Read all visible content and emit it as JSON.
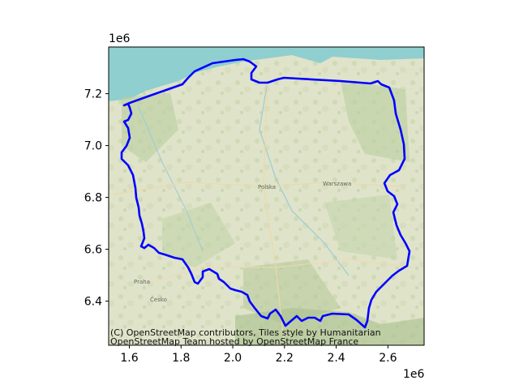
{
  "figure": {
    "x_multiplier": "1e6",
    "y_multiplier": "1e6",
    "xlim": [
      1.52,
      2.74
    ],
    "ylim": [
      6.23,
      7.38
    ],
    "x_ticks": [
      "1.6",
      "1.8",
      "2.0",
      "2.2",
      "2.4",
      "2.6"
    ],
    "y_ticks": [
      "6.4",
      "6.6",
      "6.8",
      "7.0",
      "7.2"
    ],
    "attribution_line1": "(C) OpenStreetMap contributors, Tiles style by Humanitarian",
    "attribution_line2": "OpenStreetMap Team hosted by OpenStreetMap France",
    "boundary_color": "#0000ff"
  },
  "map_labels": {
    "country": "Polska",
    "city_warsaw": "Warszawa",
    "country_south": "Česko",
    "city_prague": "Praha"
  }
}
